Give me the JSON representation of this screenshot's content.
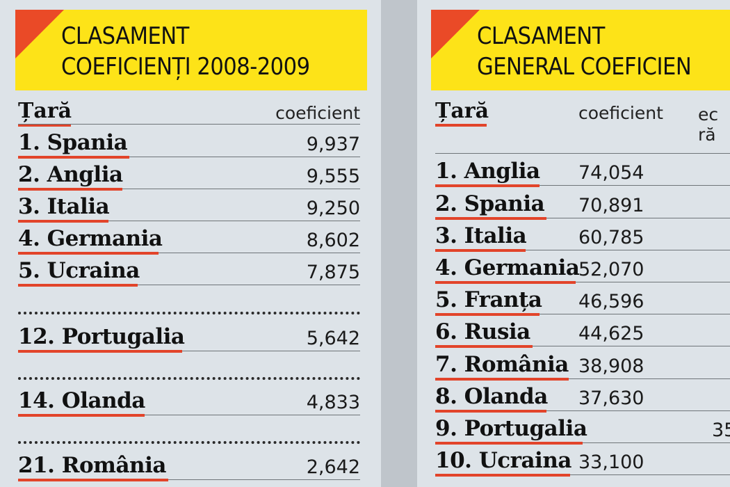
{
  "left": {
    "title_line1": "CLASAMENT",
    "title_line2": "COEFICIENȚI 2008-2009",
    "col_country": "Țară",
    "col_coef": "coeficient",
    "rows": [
      {
        "country": "1. Spania",
        "coef": "9,937"
      },
      {
        "country": "2. Anglia",
        "coef": "9,555"
      },
      {
        "country": "3. Italia",
        "coef": "9,250"
      },
      {
        "country": "4. Germania",
        "coef": "8,602"
      },
      {
        "country": "5. Ucraina",
        "coef": "7,875"
      },
      {
        "country": "12. Portugalia",
        "coef": "5,642"
      },
      {
        "country": "14. Olanda",
        "coef": "4,833"
      },
      {
        "country": "21. România",
        "coef": "2,642"
      }
    ]
  },
  "right": {
    "title_line1": "CLASAMENT",
    "title_line2": "GENERAL COEFICIEN",
    "col_country": "Țară",
    "col_coef": "coeficient",
    "col_third_line1": "ec",
    "col_third_line2": "ră",
    "rows": [
      {
        "country": "1. Anglia",
        "coef": "74,054"
      },
      {
        "country": "2. Spania",
        "coef": "70,891"
      },
      {
        "country": "3. Italia",
        "coef": "60,785"
      },
      {
        "country": "4. Germania",
        "coef": "52,070"
      },
      {
        "country": "5. Franța",
        "coef": "46,596"
      },
      {
        "country": "6. Rusia",
        "coef": "44,625"
      },
      {
        "country": "7. România",
        "coef": "38,908"
      },
      {
        "country": "8. Olanda",
        "coef": "37,630"
      },
      {
        "country": "9. Portugalia",
        "coef": "",
        "extra": "35"
      },
      {
        "country": "10. Ucraina",
        "coef": "33,100"
      }
    ]
  },
  "colors": {
    "header": "#fde318",
    "accent": "#ea4a27",
    "panel": "#dde3e8"
  }
}
